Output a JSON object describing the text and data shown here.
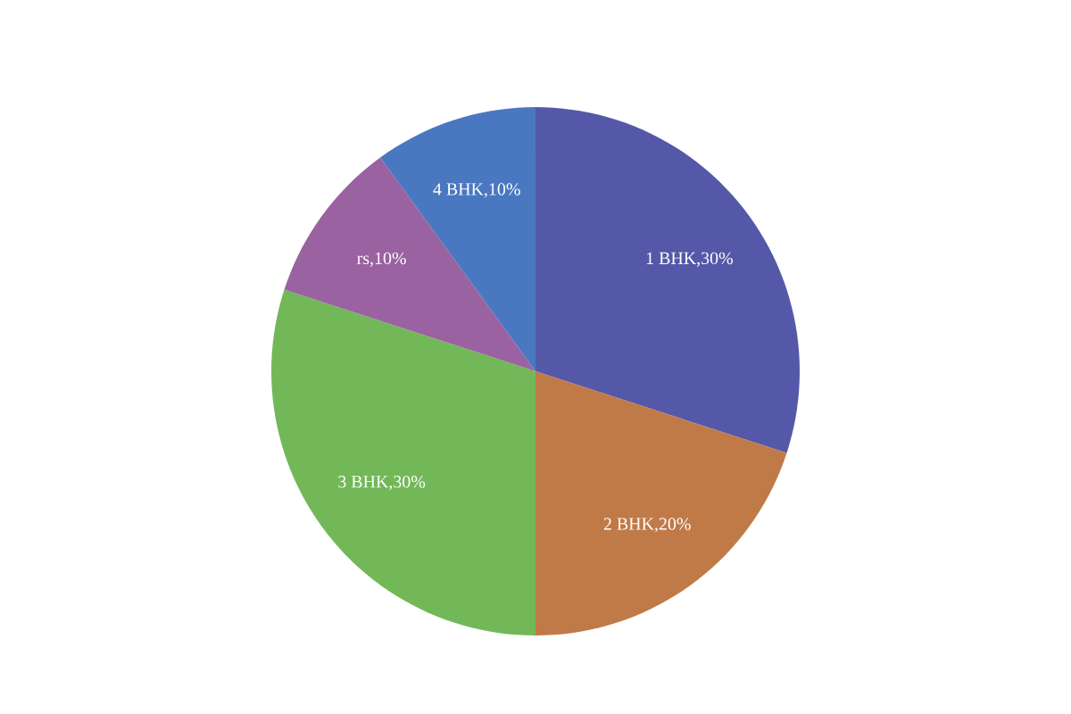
{
  "chart_data": {
    "type": "pie",
    "categories": [
      "1 BHK,30%",
      "2 BHK,20%",
      "3 BHK,30%",
      "rs,10%",
      "4 BHK,10%"
    ],
    "values": [
      30,
      20,
      30,
      10,
      10
    ],
    "colors": [
      "#5558a8",
      "#c07a48",
      "#72b858",
      "#9a62a0",
      "#4a78c0"
    ]
  }
}
